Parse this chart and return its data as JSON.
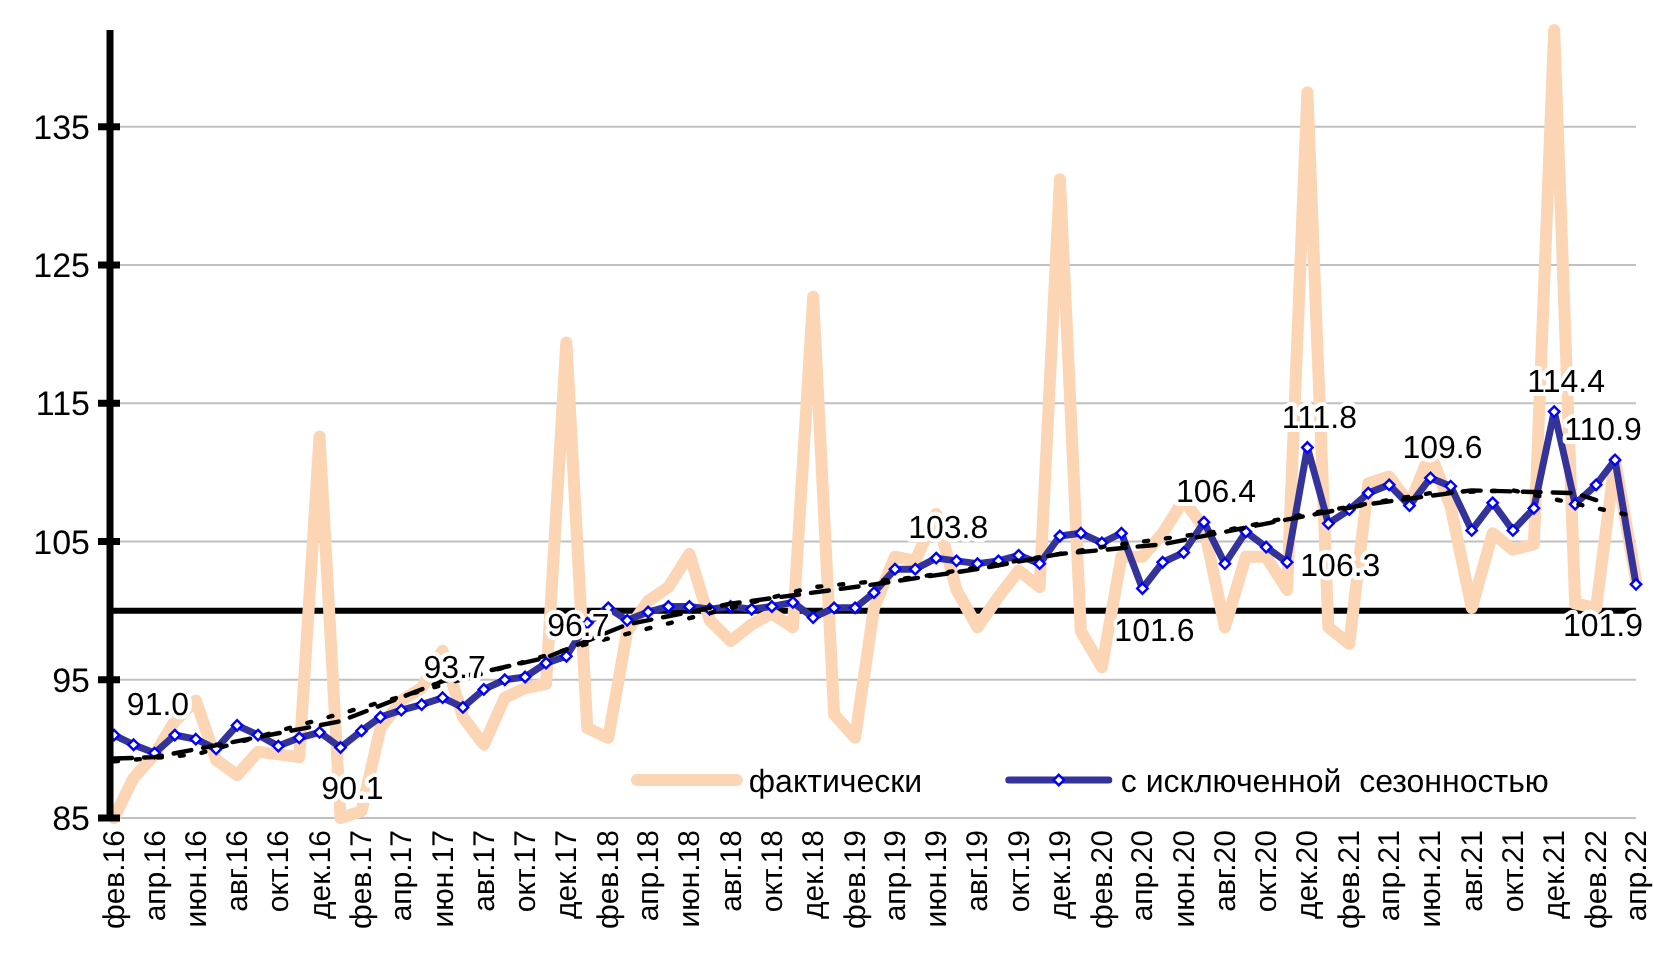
{
  "chart_data": {
    "type": "line",
    "x": [
      "2016-02",
      "2016-03",
      "2016-04",
      "2016-05",
      "2016-06",
      "2016-07",
      "2016-08",
      "2016-09",
      "2016-10",
      "2016-11",
      "2016-12",
      "2017-01",
      "2017-02",
      "2017-03",
      "2017-04",
      "2017-05",
      "2017-06",
      "2017-07",
      "2017-08",
      "2017-09",
      "2017-10",
      "2017-11",
      "2017-12",
      "2018-01",
      "2018-02",
      "2018-03",
      "2018-04",
      "2018-05",
      "2018-06",
      "2018-07",
      "2018-08",
      "2018-09",
      "2018-10",
      "2018-11",
      "2018-12",
      "2019-01",
      "2019-02",
      "2019-03",
      "2019-04",
      "2019-05",
      "2019-06",
      "2019-07",
      "2019-08",
      "2019-09",
      "2019-10",
      "2019-11",
      "2019-12",
      "2020-01",
      "2020-02",
      "2020-03",
      "2020-04",
      "2020-05",
      "2020-06",
      "2020-07",
      "2020-08",
      "2020-09",
      "2020-10",
      "2020-11",
      "2020-12",
      "2021-01",
      "2021-02",
      "2021-03",
      "2021-04",
      "2021-05",
      "2021-06",
      "2021-07",
      "2021-08",
      "2021-09",
      "2021-10",
      "2021-11",
      "2021-12",
      "2022-01",
      "2022-02",
      "2022-03",
      "2022-04"
    ],
    "series": [
      {
        "name": "фактически",
        "color": "#fcd5b4",
        "marker": "none",
        "values": [
          85,
          87.9,
          89.6,
          92.0,
          93.5,
          89.2,
          88.1,
          89.8,
          89.6,
          89.4,
          112.6,
          85,
          85.5,
          91.5,
          93.5,
          94.4,
          97.1,
          92.3,
          90.3,
          93.7,
          94.4,
          94.7,
          119.4,
          91.5,
          90.8,
          98.5,
          100.7,
          101.7,
          104.1,
          99.3,
          97.8,
          99.0,
          99.8,
          98.8,
          122.7,
          92.5,
          90.8,
          100.2,
          103.9,
          103.6,
          107.0,
          101.5,
          98.8,
          101.0,
          102.9,
          101.7,
          131.2,
          98.5,
          95.9,
          103.9,
          103.9,
          105.6,
          108.0,
          106.0,
          98.8,
          103.9,
          103.9,
          101.5,
          137.5,
          98.8,
          97.6,
          109.2,
          109.7,
          107.7,
          111.4,
          107.5,
          100.2,
          105.6,
          104.4,
          104.8,
          142,
          100.5,
          100.2,
          110.9,
          102.2
        ]
      },
      {
        "name": "с исключенной  сезонностью",
        "color": "#333399",
        "marker": "diamond",
        "values": [
          91.0,
          90.3,
          89.7,
          91.0,
          90.7,
          90.0,
          91.7,
          91.0,
          90.2,
          90.8,
          91.2,
          90.1,
          91.3,
          92.3,
          92.8,
          93.2,
          93.7,
          93.0,
          94.3,
          95.0,
          95.2,
          96.2,
          96.7,
          99.1,
          100.2,
          99.3,
          99.9,
          100.3,
          100.3,
          100.1,
          100.3,
          100.1,
          100.3,
          100.6,
          99.5,
          100.2,
          100.2,
          101.3,
          103.0,
          103.0,
          103.8,
          103.6,
          103.4,
          103.6,
          104.0,
          103.4,
          105.4,
          105.6,
          104.9,
          105.6,
          101.6,
          103.5,
          104.2,
          106.4,
          103.4,
          105.7,
          104.6,
          103.5,
          111.8,
          106.3,
          107.3,
          108.5,
          109.1,
          107.6,
          109.6,
          109.0,
          105.8,
          107.8,
          105.8,
          107.4,
          114.4,
          107.7,
          109.1,
          110.9,
          101.9
        ],
        "value_labels": [
          "91.0",
          null,
          null,
          null,
          null,
          null,
          null,
          null,
          null,
          null,
          null,
          "90.1",
          null,
          null,
          null,
          null,
          "93.7",
          null,
          null,
          null,
          null,
          null,
          "96.7",
          null,
          null,
          null,
          null,
          null,
          null,
          null,
          null,
          null,
          null,
          null,
          null,
          null,
          null,
          null,
          null,
          null,
          "103.8",
          null,
          null,
          null,
          null,
          null,
          null,
          null,
          null,
          null,
          "101.6",
          null,
          null,
          "106.4",
          null,
          null,
          null,
          null,
          "111.8",
          "106.3",
          null,
          null,
          null,
          null,
          "109.6",
          null,
          null,
          null,
          null,
          null,
          "114.4",
          null,
          null,
          "110.9",
          "101.9"
        ]
      },
      {
        "type": "line",
        "color": "#000000",
        "line_style": "dashed",
        "marker": "none",
        "x": [
          "2016-02",
          "2016-04",
          "2017-01",
          "2017-06",
          "2017-11",
          "2018-03",
          "2018-08",
          "2019-03",
          "2019-08",
          "2019-12",
          "2020-05",
          "2020-10",
          "2021-03",
          "2021-08",
          "2022-01",
          "2022-02"
        ],
        "values": [
          89.3,
          89.4,
          92.0,
          94.9,
          96.6,
          99.0,
          100.5,
          101.9,
          103.0,
          104.1,
          104.8,
          106.3,
          107.7,
          108.7,
          108.5,
          108.0
        ]
      },
      {
        "type": "line",
        "color": "#000000",
        "line_style": "dotted",
        "marker": "none",
        "x": [
          "2016-02",
          "2016-06",
          "2017-09",
          "2018-01",
          "2018-12",
          "2019-05",
          "2020-02",
          "2020-08",
          "2020-12",
          "2021-06",
          "2021-10",
          "2022-04"
        ],
        "values": [
          89.1,
          89.6,
          95.9,
          97.6,
          101.7,
          102.4,
          104.6,
          105.8,
          107.0,
          108.5,
          108.7,
          106.8
        ]
      }
    ],
    "xlim": [
      "2016-02",
      "2022-04"
    ],
    "xticks": [
      {
        "value": "2016-02",
        "label": "фев.16"
      },
      {
        "value": "2016-04",
        "label": "апр.16"
      },
      {
        "value": "2016-06",
        "label": "июн.16"
      },
      {
        "value": "2016-08",
        "label": "авг.16"
      },
      {
        "value": "2016-10",
        "label": "окт.16"
      },
      {
        "value": "2016-12",
        "label": "дек.16"
      },
      {
        "value": "2017-02",
        "label": "фев.17"
      },
      {
        "value": "2017-04",
        "label": "апр.17"
      },
      {
        "value": "2017-06",
        "label": "июн.17"
      },
      {
        "value": "2017-08",
        "label": "авг.17"
      },
      {
        "value": "2017-10",
        "label": "окт.17"
      },
      {
        "value": "2017-12",
        "label": "дек.17"
      },
      {
        "value": "2018-02",
        "label": "фев.18"
      },
      {
        "value": "2018-04",
        "label": "апр.18"
      },
      {
        "value": "2018-06",
        "label": "июн.18"
      },
      {
        "value": "2018-08",
        "label": "авг.18"
      },
      {
        "value": "2018-10",
        "label": "окт.18"
      },
      {
        "value": "2018-12",
        "label": "дек.18"
      },
      {
        "value": "2019-02",
        "label": "фев.19"
      },
      {
        "value": "2019-04",
        "label": "апр.19"
      },
      {
        "value": "2019-06",
        "label": "июн.19"
      },
      {
        "value": "2019-08",
        "label": "авг.19"
      },
      {
        "value": "2019-10",
        "label": "окт.19"
      },
      {
        "value": "2019-12",
        "label": "дек.19"
      },
      {
        "value": "2020-02",
        "label": "фев.20"
      },
      {
        "value": "2020-04",
        "label": "апр.20"
      },
      {
        "value": "2020-06",
        "label": "июн.20"
      },
      {
        "value": "2020-08",
        "label": "авг.20"
      },
      {
        "value": "2020-10",
        "label": "окт.20"
      },
      {
        "value": "2020-12",
        "label": "дек.20"
      },
      {
        "value": "2021-02",
        "label": "фев.21"
      },
      {
        "value": "2021-04",
        "label": "апр.21"
      },
      {
        "value": "2021-06",
        "label": "июн.21"
      },
      {
        "value": "2021-08",
        "label": "авг.21"
      },
      {
        "value": "2021-10",
        "label": "окт.21"
      },
      {
        "value": "2021-12",
        "label": "дек.21"
      },
      {
        "value": "2022-02",
        "label": "фев.22"
      },
      {
        "value": "2022-04",
        "label": "апр.22"
      }
    ],
    "ylim": [
      85,
      142
    ],
    "yticks": [
      85,
      95,
      105,
      115,
      125,
      135
    ],
    "ref_lines": [
      {
        "axis": "y",
        "value": 100,
        "color": "#000000"
      }
    ],
    "grid": "y",
    "legend": "bottom"
  }
}
